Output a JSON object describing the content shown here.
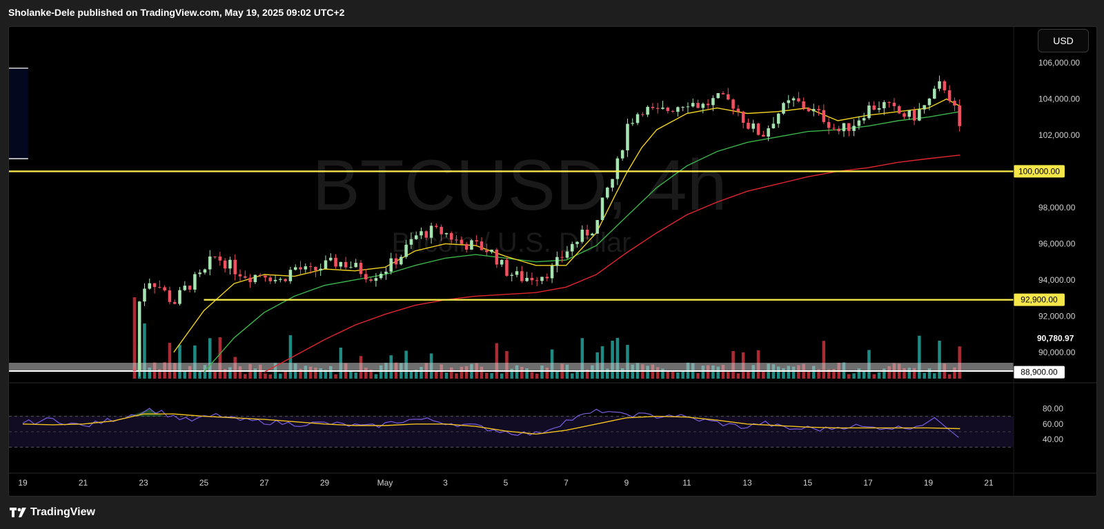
{
  "header": {
    "publish_line": "Sholanke-Dele published on TradingView.com, May 19, 2025 09:02 UTC+2"
  },
  "toolbar": {
    "currency_label": "USD"
  },
  "footer": {
    "brand": "TradingView"
  },
  "colors": {
    "up": "#a5e3b0",
    "down": "#f0505f",
    "vol_up": "#1f8a84",
    "vol_down": "#ab2b34",
    "ma_fast": "#f2d21f",
    "ma_mid": "#3bb44a",
    "ma_slow": "#e2262e",
    "level_line": "#f5e74a",
    "rsi": "#7a5de0",
    "rsi_ma": "#f2c21f",
    "range_box": "#04081e"
  },
  "watermark": {
    "symbol": "BTCUSD, 4h",
    "description": "Bitcoin / U.S. Dollar"
  },
  "chart_data": {
    "type": "candlestick",
    "symbol": "BTCUSD",
    "interval": "4h",
    "y_axis": {
      "min": 88900,
      "max": 106800,
      "ticks": [
        "106,000.00",
        "104,000.00",
        "102,000.00",
        "100,000.00",
        "98,000.00",
        "96,000.00",
        "94,000.00",
        "92,000.00",
        "90,000.00"
      ],
      "tick_values": [
        106000,
        104000,
        102000,
        100000,
        98000,
        96000,
        94000,
        92000,
        90000
      ]
    },
    "x_axis": {
      "ticks": [
        "19",
        "21",
        "23",
        "25",
        "27",
        "29",
        "May",
        "3",
        "5",
        "7",
        "9",
        "11",
        "13",
        "15",
        "17",
        "19",
        "21"
      ]
    },
    "price_labels": [
      {
        "label": "100,000.00",
        "value": 100000,
        "style": "yellow"
      },
      {
        "label": "92,900.00",
        "value": 92900,
        "style": "yellow"
      },
      {
        "label": "90,780.97",
        "value": 90780.97,
        "style": "plain"
      },
      {
        "label": "88,900.00",
        "value": 88900,
        "style": "white"
      }
    ],
    "horizontal_levels": [
      100000,
      92900
    ],
    "range_box": {
      "top": 105700,
      "bottom": 100700,
      "from_day": 9.0,
      "to_day": 18.95
    },
    "rsi_axis": {
      "ticks": [
        "80.00",
        "60.00",
        "40.00"
      ],
      "tick_values": [
        80,
        60,
        40
      ],
      "upper_band": 70,
      "lower_band": 30
    },
    "price_path": [
      [
        22.7,
        89000
      ],
      [
        22.75,
        90800
      ],
      [
        22.8,
        92000
      ],
      [
        22.9,
        93200
      ],
      [
        23.0,
        93600
      ],
      [
        23.2,
        94000
      ],
      [
        23.5,
        93700
      ],
      [
        24.0,
        92700
      ],
      [
        24.3,
        93400
      ],
      [
        24.7,
        94000
      ],
      [
        25.0,
        94300
      ],
      [
        25.3,
        95300
      ],
      [
        25.6,
        95100
      ],
      [
        26.0,
        94600
      ],
      [
        26.5,
        94200
      ],
      [
        27.0,
        94400
      ],
      [
        27.5,
        93900
      ],
      [
        28.0,
        94700
      ],
      [
        28.5,
        94400
      ],
      [
        29.0,
        94800
      ],
      [
        29.5,
        95000
      ],
      [
        30.0,
        94700
      ],
      [
        30.5,
        94200
      ],
      [
        31.0,
        94600
      ],
      [
        31.5,
        95300
      ],
      [
        32.0,
        96400
      ],
      [
        32.5,
        96700
      ],
      [
        33.0,
        96600
      ],
      [
        33.5,
        96000
      ],
      [
        34.0,
        95900
      ],
      [
        34.5,
        95600
      ],
      [
        35.0,
        94500
      ],
      [
        35.5,
        94100
      ],
      [
        36.0,
        94200
      ],
      [
        36.5,
        94500
      ],
      [
        37.0,
        95600
      ],
      [
        37.5,
        96400
      ],
      [
        38.0,
        97000
      ],
      [
        38.3,
        98800
      ],
      [
        38.6,
        99800
      ],
      [
        38.8,
        101000
      ],
      [
        39.0,
        102500
      ],
      [
        39.5,
        103500
      ],
      [
        40.0,
        103200
      ],
      [
        40.5,
        103500
      ],
      [
        41.0,
        103900
      ],
      [
        41.5,
        103600
      ],
      [
        42.0,
        104000
      ],
      [
        42.5,
        103800
      ],
      [
        43.0,
        102600
      ],
      [
        43.5,
        102000
      ],
      [
        44.0,
        103200
      ],
      [
        44.5,
        103900
      ],
      [
        45.0,
        103500
      ],
      [
        45.5,
        103000
      ],
      [
        46.0,
        102200
      ],
      [
        46.5,
        102600
      ],
      [
        47.0,
        103500
      ],
      [
        47.5,
        103700
      ],
      [
        48.0,
        103200
      ],
      [
        48.5,
        103000
      ],
      [
        49.0,
        103800
      ],
      [
        49.4,
        104800
      ],
      [
        49.6,
        104600
      ],
      [
        49.8,
        103700
      ],
      [
        50.05,
        102500
      ]
    ],
    "ma_fast_pts": [
      [
        24.0,
        90000
      ],
      [
        25.0,
        92300
      ],
      [
        26.0,
        93800
      ],
      [
        27.0,
        94300
      ],
      [
        28.0,
        94200
      ],
      [
        29.0,
        94600
      ],
      [
        30.0,
        94500
      ],
      [
        31.0,
        94700
      ],
      [
        32.0,
        95600
      ],
      [
        33.0,
        96000
      ],
      [
        34.0,
        95900
      ],
      [
        35.0,
        95300
      ],
      [
        36.0,
        94800
      ],
      [
        37.0,
        94800
      ],
      [
        38.0,
        96600
      ],
      [
        38.6,
        98600
      ],
      [
        39.0,
        99900
      ],
      [
        39.5,
        101300
      ],
      [
        40.0,
        102300
      ],
      [
        41.0,
        103200
      ],
      [
        42.0,
        103500
      ],
      [
        43.0,
        103200
      ],
      [
        44.0,
        103300
      ],
      [
        45.0,
        103500
      ],
      [
        46.0,
        102800
      ],
      [
        47.0,
        103100
      ],
      [
        48.0,
        103300
      ],
      [
        49.0,
        103500
      ],
      [
        49.6,
        104000
      ],
      [
        50.05,
        103600
      ]
    ],
    "ma_mid_pts": [
      [
        25.0,
        88900
      ],
      [
        26.0,
        90800
      ],
      [
        27.0,
        92200
      ],
      [
        28.0,
        93100
      ],
      [
        29.0,
        93700
      ],
      [
        30.0,
        94000
      ],
      [
        31.0,
        94300
      ],
      [
        32.0,
        94800
      ],
      [
        33.0,
        95200
      ],
      [
        34.0,
        95400
      ],
      [
        35.0,
        95200
      ],
      [
        36.0,
        95000
      ],
      [
        37.0,
        95100
      ],
      [
        38.0,
        95900
      ],
      [
        39.0,
        97500
      ],
      [
        40.0,
        99100
      ],
      [
        41.0,
        100300
      ],
      [
        42.0,
        101100
      ],
      [
        43.0,
        101600
      ],
      [
        44.0,
        101900
      ],
      [
        45.0,
        102200
      ],
      [
        46.0,
        102300
      ],
      [
        47.0,
        102500
      ],
      [
        48.0,
        102800
      ],
      [
        49.0,
        103000
      ],
      [
        50.05,
        103300
      ]
    ],
    "ma_slow_pts": [
      [
        27.0,
        88900
      ],
      [
        28.0,
        89800
      ],
      [
        29.0,
        90700
      ],
      [
        30.0,
        91500
      ],
      [
        31.0,
        92100
      ],
      [
        32.0,
        92600
      ],
      [
        33.0,
        92900
      ],
      [
        34.0,
        93100
      ],
      [
        35.0,
        93200
      ],
      [
        36.0,
        93300
      ],
      [
        37.0,
        93600
      ],
      [
        38.0,
        94300
      ],
      [
        39.0,
        95500
      ],
      [
        40.0,
        96600
      ],
      [
        41.0,
        97600
      ],
      [
        42.0,
        98300
      ],
      [
        43.0,
        98900
      ],
      [
        44.0,
        99300
      ],
      [
        45.0,
        99700
      ],
      [
        46.0,
        100000
      ],
      [
        47.0,
        100200
      ],
      [
        48.0,
        100500
      ],
      [
        49.0,
        100700
      ],
      [
        50.05,
        100900
      ]
    ],
    "rsi_pts": [
      [
        19.0,
        61
      ],
      [
        20.0,
        66
      ],
      [
        21.0,
        57
      ],
      [
        22.0,
        66
      ],
      [
        22.8,
        74
      ],
      [
        23.2,
        79
      ],
      [
        23.6,
        75
      ],
      [
        24.0,
        70
      ],
      [
        24.5,
        64
      ],
      [
        25.0,
        68
      ],
      [
        25.5,
        72
      ],
      [
        26.0,
        66
      ],
      [
        26.5,
        64
      ],
      [
        27.0,
        63
      ],
      [
        28.0,
        60
      ],
      [
        29.0,
        61
      ],
      [
        30.0,
        58
      ],
      [
        30.5,
        56
      ],
      [
        31.0,
        60
      ],
      [
        31.5,
        64
      ],
      [
        32.0,
        66
      ],
      [
        32.5,
        65
      ],
      [
        33.0,
        62
      ],
      [
        34.0,
        57
      ],
      [
        35.0,
        50
      ],
      [
        35.5,
        48
      ],
      [
        36.0,
        47
      ],
      [
        36.5,
        55
      ],
      [
        37.0,
        64
      ],
      [
        37.5,
        70
      ],
      [
        38.0,
        76
      ],
      [
        38.3,
        78
      ],
      [
        38.7,
        71
      ],
      [
        39.0,
        73
      ],
      [
        40.0,
        70
      ],
      [
        40.5,
        72
      ],
      [
        41.0,
        68
      ],
      [
        41.5,
        65
      ],
      [
        42.0,
        62
      ],
      [
        42.5,
        58
      ],
      [
        43.0,
        56
      ],
      [
        43.5,
        62
      ],
      [
        44.0,
        57
      ],
      [
        44.5,
        53
      ],
      [
        45.0,
        55
      ],
      [
        45.5,
        53
      ],
      [
        46.0,
        56
      ],
      [
        46.5,
        58
      ],
      [
        47.0,
        55
      ],
      [
        47.5,
        56
      ],
      [
        48.0,
        55
      ],
      [
        48.5,
        57
      ],
      [
        49.0,
        63
      ],
      [
        49.3,
        66
      ],
      [
        49.6,
        58
      ],
      [
        49.9,
        48
      ],
      [
        50.05,
        44
      ]
    ],
    "rsi_ma_pts": [
      [
        19.0,
        60
      ],
      [
        20.0,
        59
      ],
      [
        21.0,
        60
      ],
      [
        22.0,
        64
      ],
      [
        23.0,
        73
      ],
      [
        24.0,
        73
      ],
      [
        25.0,
        70
      ],
      [
        26.0,
        68
      ],
      [
        27.0,
        66
      ],
      [
        28.0,
        63
      ],
      [
        29.0,
        60
      ],
      [
        30.0,
        58
      ],
      [
        31.0,
        58
      ],
      [
        32.0,
        60
      ],
      [
        33.0,
        60
      ],
      [
        34.0,
        57
      ],
      [
        35.0,
        51
      ],
      [
        36.0,
        47
      ],
      [
        37.0,
        52
      ],
      [
        38.0,
        60
      ],
      [
        39.0,
        68
      ],
      [
        40.0,
        70
      ],
      [
        41.0,
        69
      ],
      [
        42.0,
        65
      ],
      [
        43.0,
        60
      ],
      [
        44.0,
        58
      ],
      [
        45.0,
        56
      ],
      [
        46.0,
        55
      ],
      [
        47.0,
        55
      ],
      [
        48.0,
        55
      ],
      [
        49.0,
        55
      ],
      [
        50.05,
        54
      ]
    ]
  }
}
